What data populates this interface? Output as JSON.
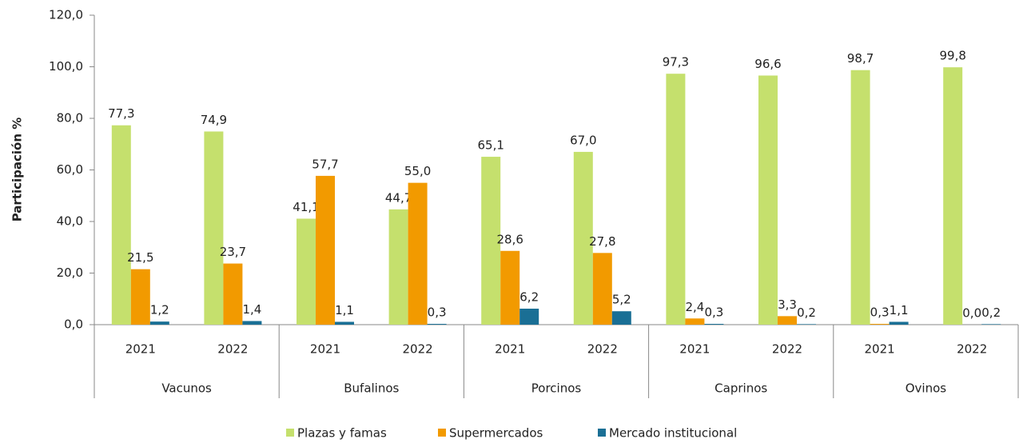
{
  "chart_data": {
    "type": "bar",
    "y_label": "Participación %",
    "categories": [
      "2021",
      "2022",
      "2021",
      "2022",
      "2021",
      "2022",
      "2021",
      "2022",
      "2021",
      "2022"
    ],
    "groups": [
      "Vacunos",
      "Bufalinos",
      "Porcinos",
      "Caprinos",
      "Ovinos"
    ],
    "series": [
      {
        "name": "Plazas y famas",
        "color": "#c5e06d",
        "values": [
          77.3,
          74.9,
          41.1,
          44.7,
          65.1,
          67.0,
          97.3,
          96.6,
          98.7,
          99.8
        ],
        "value_labels": [
          "77,3",
          "74,9",
          "41,1",
          "44,7",
          "65,1",
          "67,0",
          "97,3",
          "96,6",
          "98,7",
          "99,8"
        ]
      },
      {
        "name": "Supermercados",
        "color": "#f29a00",
        "values": [
          21.5,
          23.7,
          57.7,
          55.0,
          28.6,
          27.8,
          2.4,
          3.3,
          0.3,
          0.0
        ],
        "value_labels": [
          "21,5",
          "23,7",
          "57,7",
          "55,0",
          "28,6",
          "27,8",
          "2,4",
          "3,3",
          "0,3",
          "0,0"
        ]
      },
      {
        "name": "Mercado institucional",
        "color": "#1a6f95",
        "values": [
          1.2,
          1.4,
          1.1,
          0.3,
          6.2,
          5.2,
          0.3,
          0.2,
          1.1,
          0.2
        ],
        "value_labels": [
          "1,2",
          "1,4",
          "1,1",
          "0,3",
          "6,2",
          "5,2",
          "0,3",
          "0,2",
          "1,1",
          "0,2"
        ]
      }
    ],
    "ylim": [
      0,
      120
    ],
    "yticks": [
      {
        "value": 0,
        "label": "0,0"
      },
      {
        "value": 20,
        "label": "20,0"
      },
      {
        "value": 40,
        "label": "40,0"
      },
      {
        "value": 60,
        "label": "60,0"
      },
      {
        "value": 80,
        "label": "80,0"
      },
      {
        "value": 100,
        "label": "100,0"
      },
      {
        "value": 120,
        "label": "120,0"
      }
    ],
    "grid": false,
    "legend": "bottom"
  }
}
